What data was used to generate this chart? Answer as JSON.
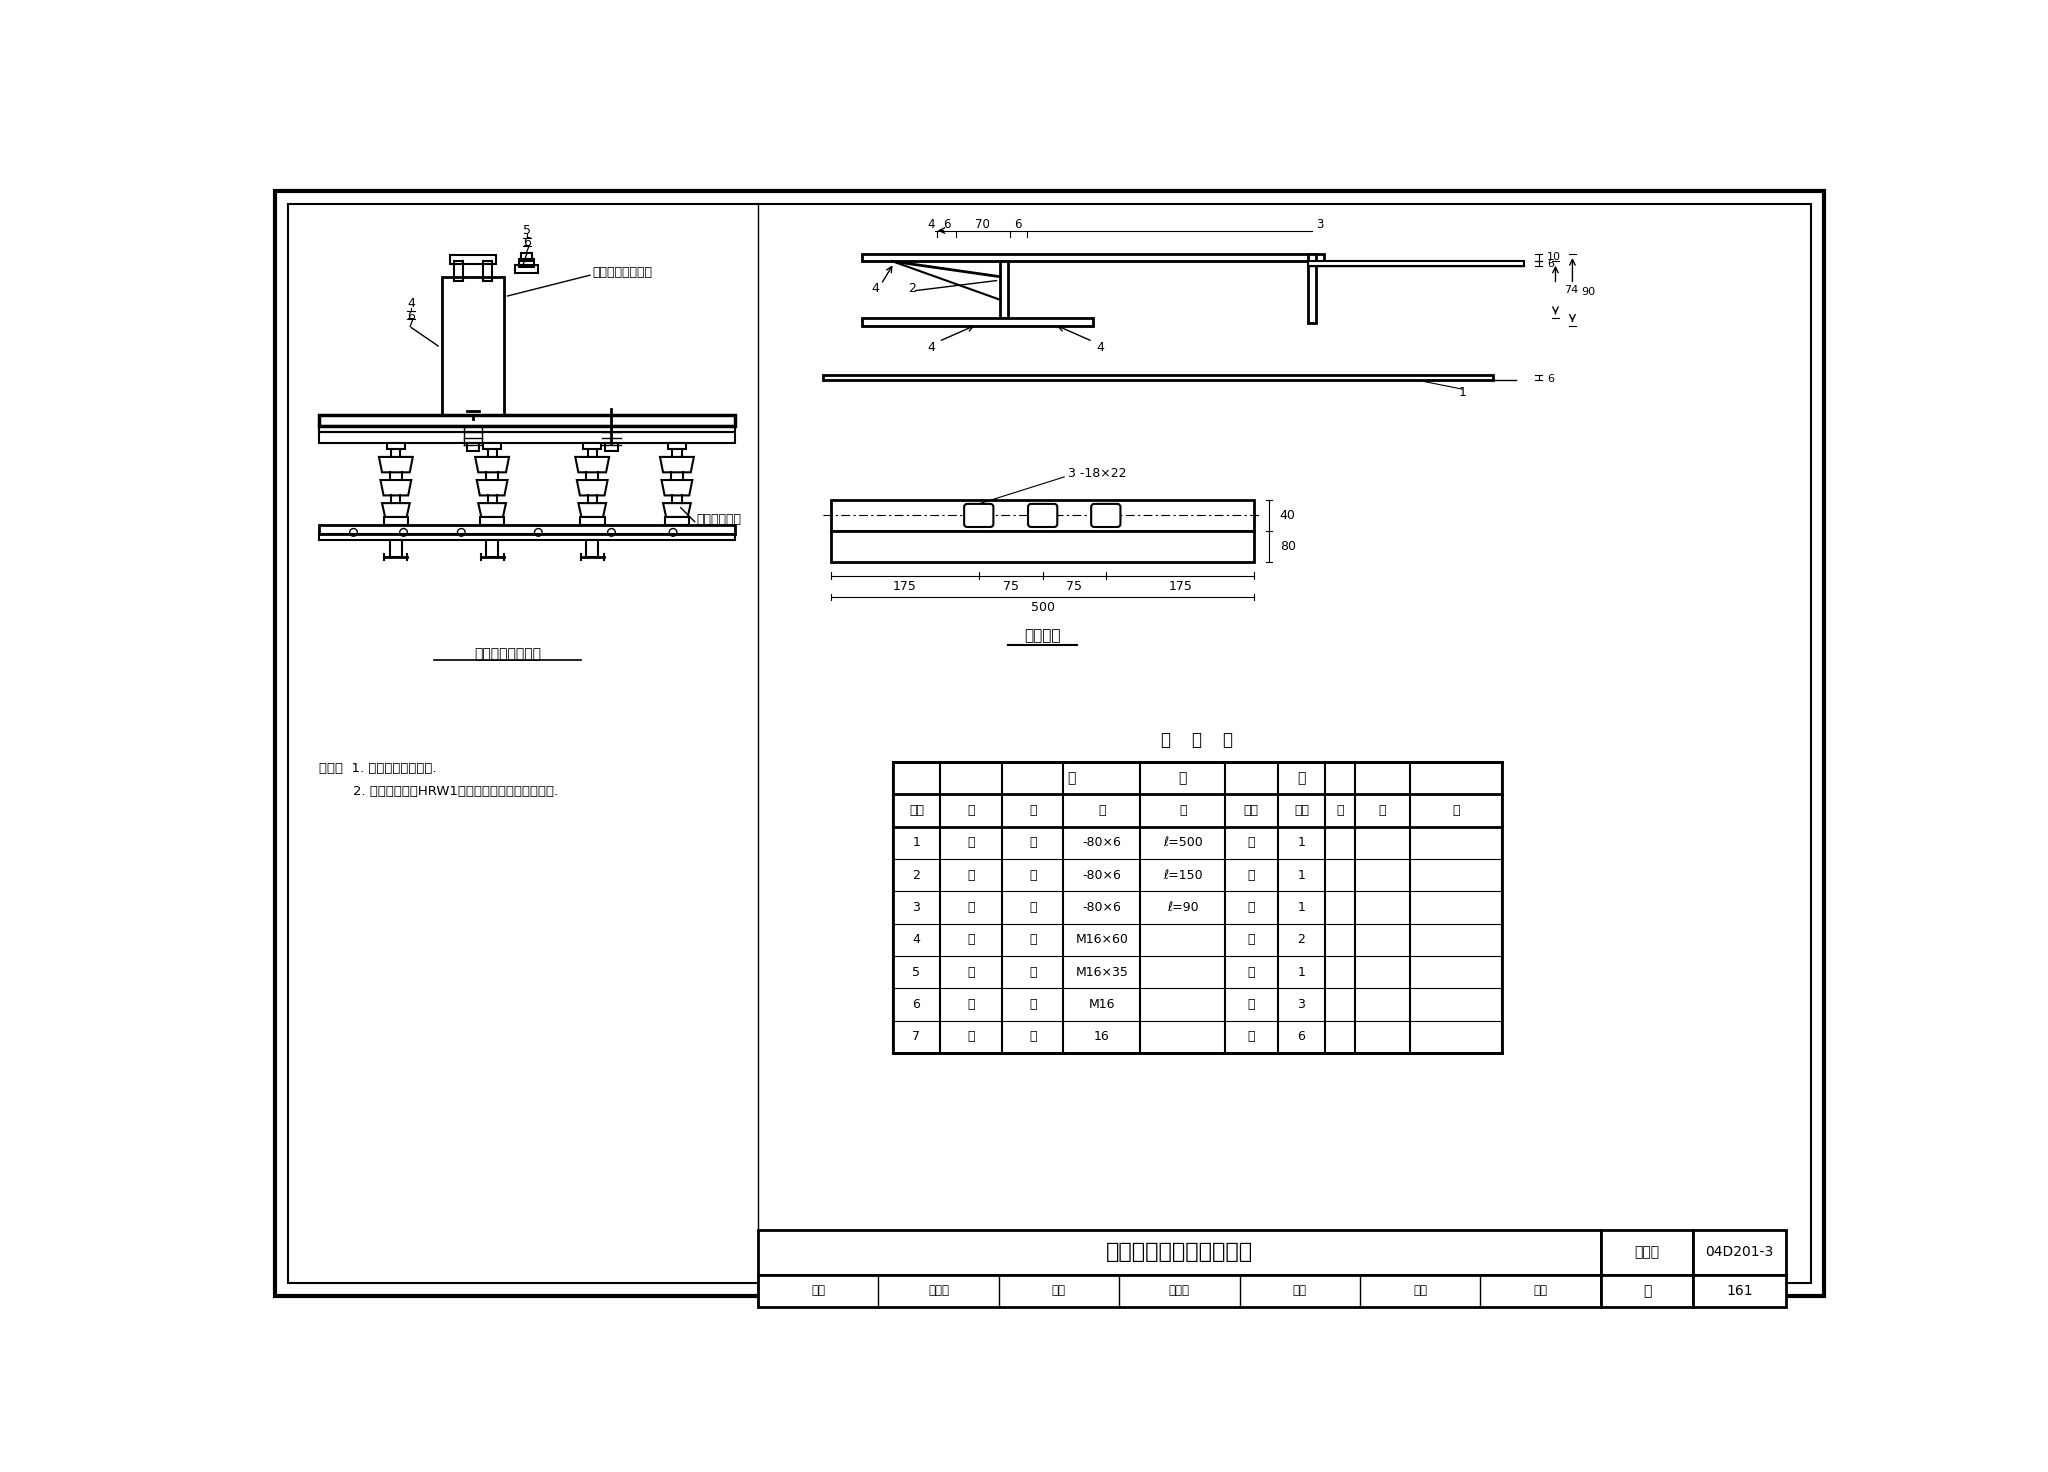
{
  "title": "低压刀熔开关安装（一）",
  "drawing_number": "04D201-3",
  "page": "161",
  "figure_set_label": "图集号",
  "background_color": "#ffffff",
  "line_color": "#000000",
  "left_diagram_label": "低压刀熔开关安装",
  "right_top_annotation": "低压刀熔开关横担",
  "right_switch_label": "低压刀熔开关",
  "right_bracket_label": "固定支架",
  "note_line1": "附注：  1. 固定角钢应热镀锌.",
  "note_line2": "        2. 本图只适用于HRW1型户外低压熔断器式刀开关.",
  "table_title": "材    料    表",
  "table_col_headers_row1": [
    "编号",
    "名",
    "称",
    "规",
    "格",
    "单位",
    "数量",
    "页",
    "备    注"
  ],
  "table_col_headers_row2": [
    "编号",
    "名    称",
    "规    格",
    "单位",
    "数量",
    "页",
    "备    注"
  ],
  "table_rows": [
    [
      "1",
      "扁    钢",
      "-80×6",
      "ℓ=500",
      "根",
      "1"
    ],
    [
      "2",
      "扁    钢",
      "-80×6",
      "ℓ=150",
      "根",
      "1"
    ],
    [
      "3",
      "扁    钢",
      "-80×6",
      "ℓ=90",
      "根",
      "1"
    ],
    [
      "4",
      "螺    栓",
      "M16×60",
      "",
      "个",
      "2"
    ],
    [
      "5",
      "螺    栓",
      "M16×35",
      "",
      "个",
      "1"
    ],
    [
      "6",
      "螺    母",
      "M16",
      "",
      "个",
      "3"
    ],
    [
      "7",
      "垫    圈",
      "16",
      "",
      "个",
      "6"
    ]
  ],
  "stamp_items": [
    "审核",
    "吴他兴",
    "校对",
    "寻小华",
    "设计",
    "鲁种",
    "建树"
  ],
  "dim_top": {
    "d4": "4",
    "d6a": "6",
    "d70": "70",
    "d6b": "6",
    "d3": "3",
    "d10": "10",
    "d6c": "6",
    "d74": "74",
    "d90": "90",
    "d6d": "6"
  },
  "dim_bracket": {
    "d175a": "175",
    "d75a": "75",
    "d75b": "75",
    "d175b": "175",
    "d500": "500",
    "d40": "40",
    "d80": "80"
  },
  "part_labels_left": [
    "5",
    "6",
    "7",
    "4",
    "6",
    "7"
  ],
  "ref_nums": [
    "2",
    "4",
    "4",
    "1",
    "3",
    "3-18×22"
  ]
}
